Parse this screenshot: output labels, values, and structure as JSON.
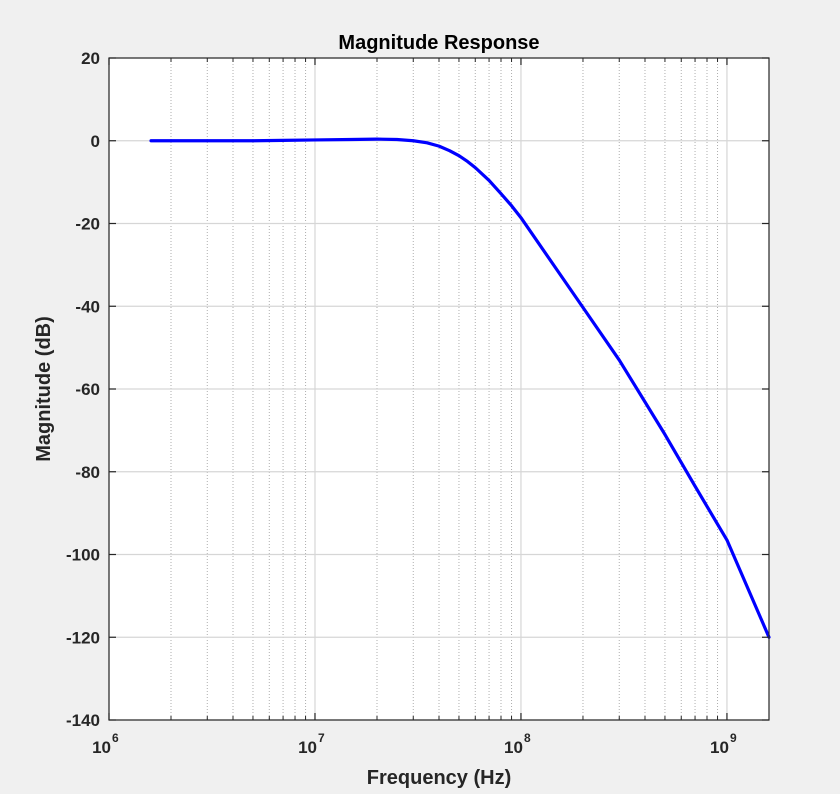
{
  "chart_data": {
    "type": "line",
    "title": "Magnitude Response",
    "xlabel": "Frequency (Hz)",
    "ylabel": "Magnitude (dB)",
    "xscale": "log",
    "xlim": [
      1000000,
      1600000000
    ],
    "ylim": [
      -140,
      20
    ],
    "xticks": [
      {
        "value": 1000000,
        "base": "10",
        "exponent": "6"
      },
      {
        "value": 10000000,
        "base": "10",
        "exponent": "7"
      },
      {
        "value": 100000000,
        "base": "10",
        "exponent": "8"
      },
      {
        "value": 1000000000,
        "base": "10",
        "exponent": "9"
      }
    ],
    "yticks": [
      "20",
      "0",
      "-20",
      "-40",
      "-60",
      "-80",
      "-100",
      "-120",
      "-140"
    ],
    "grid": true,
    "minor_grid_x": true,
    "line_color": "#0000ff",
    "series": [
      {
        "x": [
          1600000,
          2000000,
          3000000,
          5000000,
          7000000,
          10000000,
          15000000,
          20000000,
          25000000,
          30000000,
          35000000,
          40000000,
          45000000,
          50000000,
          55000000,
          60000000,
          70000000,
          80000000,
          90000000,
          100000000,
          150000000,
          200000000,
          300000000,
          500000000,
          700000000,
          1000000000,
          1600000000
        ],
        "y": [
          0,
          0,
          0,
          0,
          0.1,
          0.2,
          0.3,
          0.4,
          0.3,
          0,
          -0.5,
          -1.3,
          -2.4,
          -3.6,
          -5.0,
          -6.5,
          -9.6,
          -12.8,
          -15.7,
          -18.6,
          -31.3,
          -40.3,
          -53.0,
          -71.0,
          -83.5,
          -96.5,
          -120
        ]
      }
    ]
  }
}
